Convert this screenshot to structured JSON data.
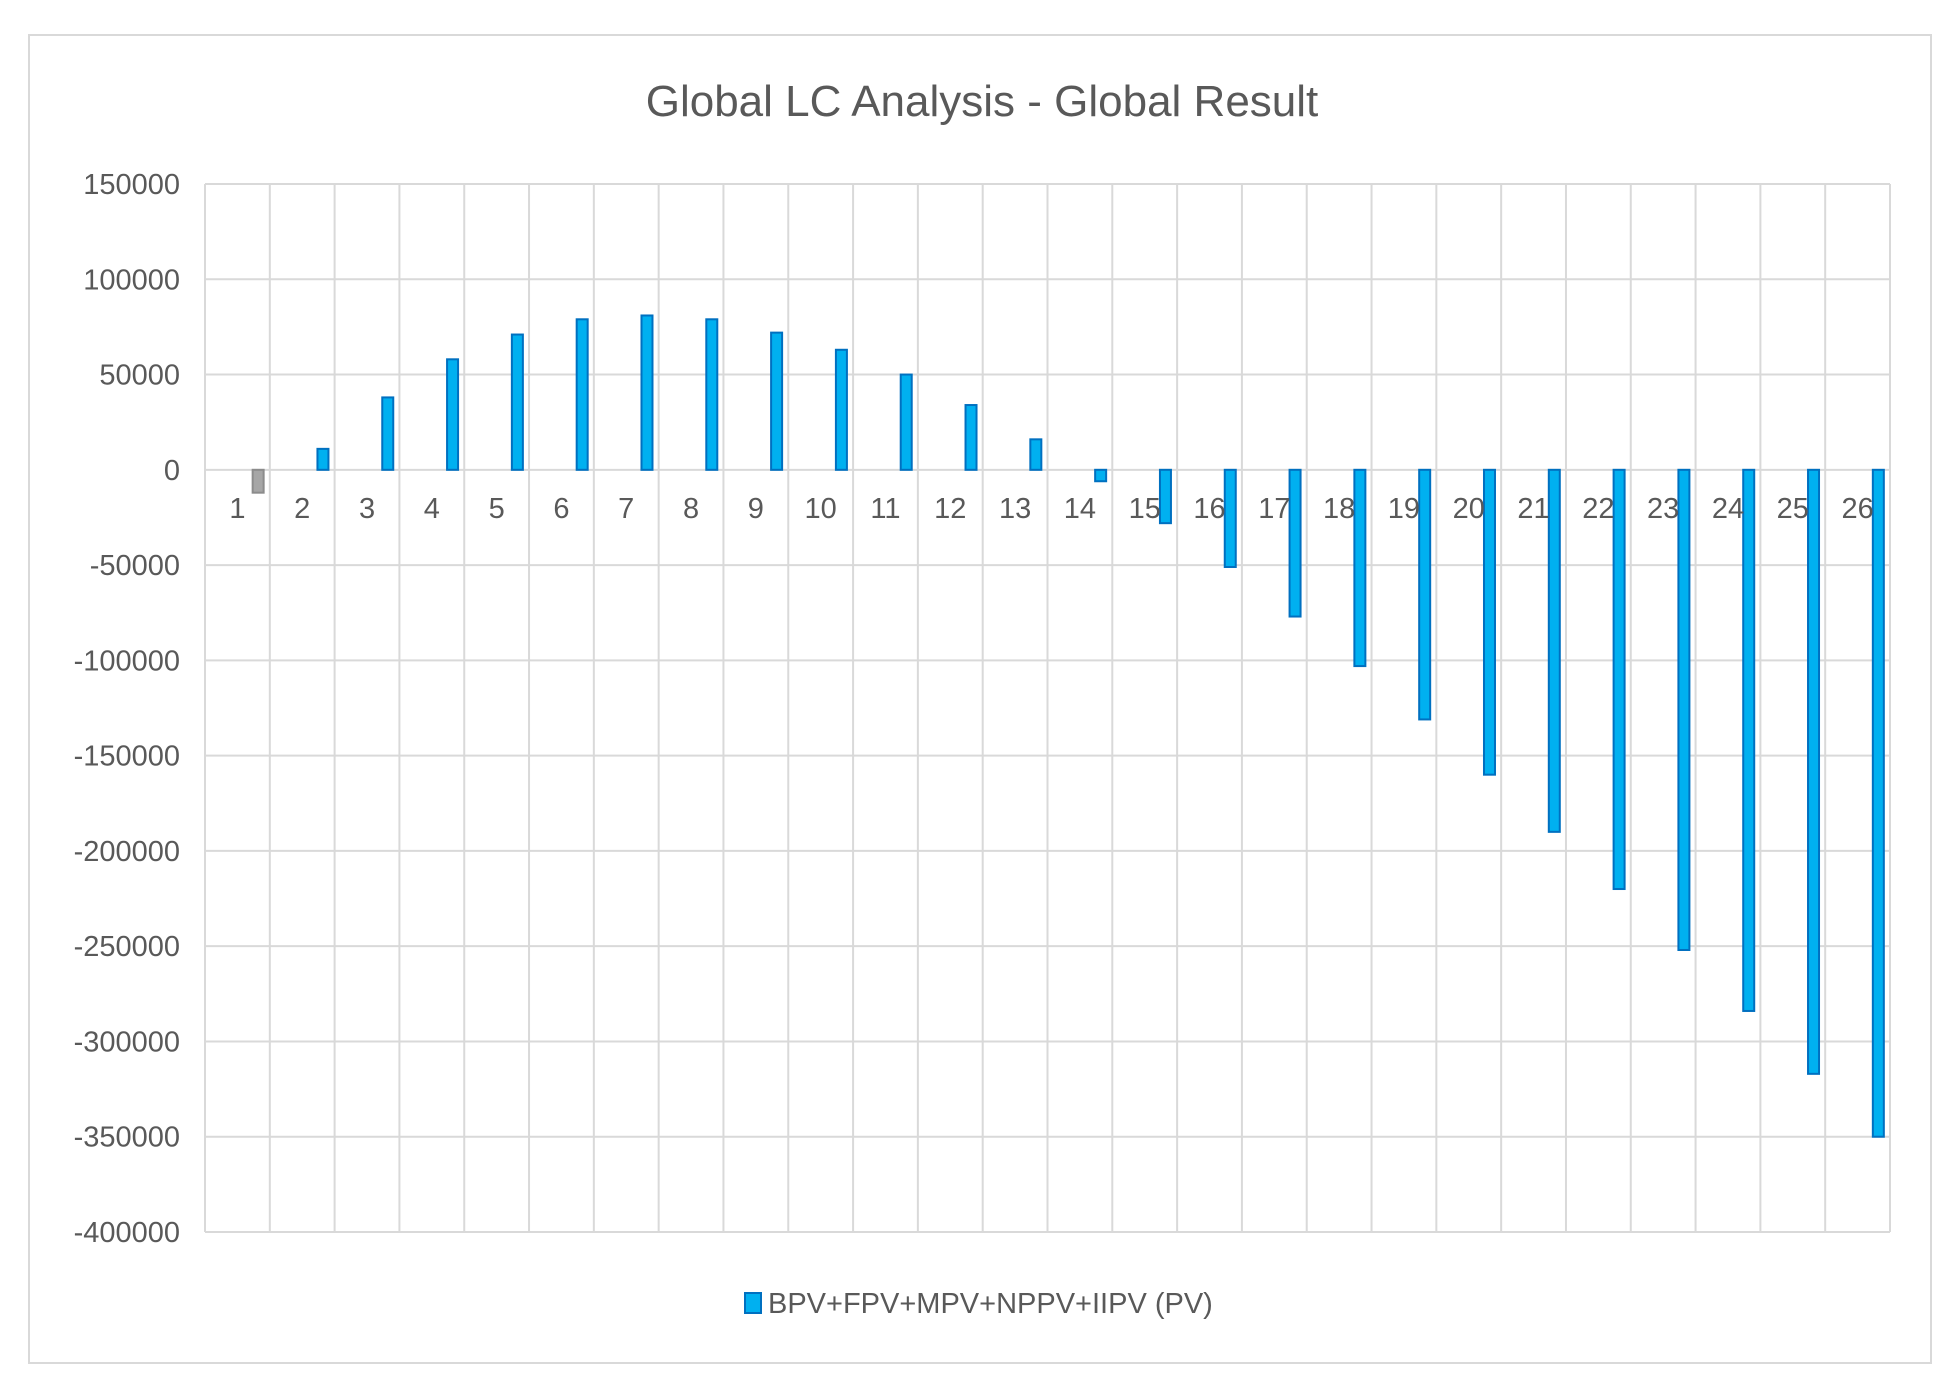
{
  "chart_data": {
    "type": "bar",
    "title": "Global LC Analysis - Global Result",
    "xlabel": "",
    "ylabel": "",
    "ylim": [
      -400000,
      150000
    ],
    "yticks": [
      150000,
      100000,
      50000,
      0,
      -50000,
      -100000,
      -150000,
      -200000,
      -250000,
      -300000,
      -350000,
      -400000
    ],
    "categories": [
      "1",
      "2",
      "3",
      "4",
      "5",
      "6",
      "7",
      "8",
      "9",
      "10",
      "11",
      "12",
      "13",
      "14",
      "15",
      "16",
      "17",
      "18",
      "19",
      "20",
      "21",
      "22",
      "23",
      "24",
      "25",
      "26"
    ],
    "grid": true,
    "legend_position": "bottom",
    "series": [
      {
        "name": "BPV+FPV+MPV+NPPV+IIPV (PV)",
        "color": "#00b0f0",
        "edge_color": "#0070c0",
        "negative_first_color": "#a6a6a6",
        "values": [
          -12000,
          11000,
          38000,
          58000,
          71000,
          79000,
          81000,
          79000,
          72000,
          63000,
          50000,
          34000,
          16000,
          -6000,
          -28000,
          -51000,
          -77000,
          -103000,
          -131000,
          -160000,
          -190000,
          -220000,
          -252000,
          -284000,
          -317000,
          -350000
        ]
      }
    ]
  }
}
